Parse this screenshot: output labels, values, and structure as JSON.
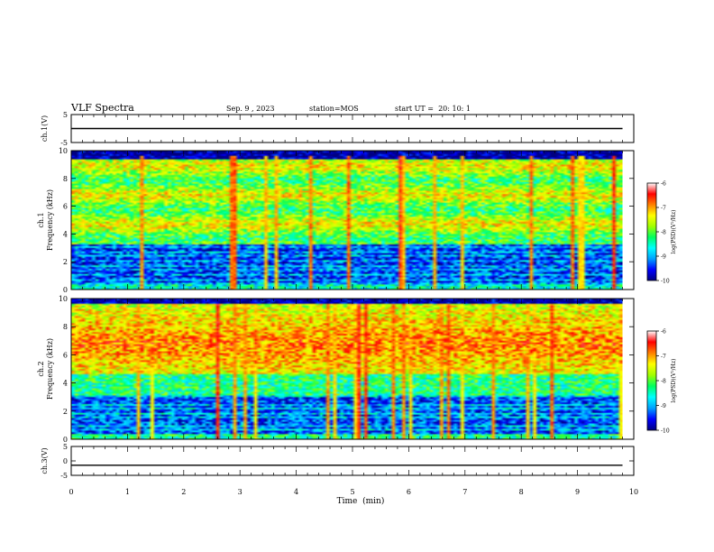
{
  "header": {
    "title": "VLF Spectra",
    "date": "Sep. 9 , 2023",
    "station": "station=MOS",
    "start": "start UT =  20: 10: 1"
  },
  "colors": {
    "colormap": [
      "#000080",
      "#0000ff",
      "#00a0ff",
      "#00ffff",
      "#00ff60",
      "#a0ff00",
      "#ffff00",
      "#ff8000",
      "#ff0000",
      "#ffffff"
    ],
    "line": "#000000"
  },
  "chart_data": [
    {
      "type": "line",
      "panel": "ch1-voltage",
      "ylabel": "ch.1(V)",
      "ylim": [
        -5,
        5
      ],
      "y_ticks": [
        "5",
        "-5"
      ],
      "series": [
        {
          "x": [
            0,
            9.8
          ],
          "y": [
            0,
            0
          ]
        }
      ]
    },
    {
      "type": "heatmap",
      "panel": "ch1-spectrogram",
      "ylabel": "ch.1\nFrequency (kHz)",
      "ylim": [
        0,
        10
      ],
      "y_ticks": [
        "0",
        "2",
        "4",
        "6",
        "8",
        "10"
      ],
      "x_range_min": [
        0,
        9.8
      ],
      "colorbar": {
        "label": "log(PSD)(V²/Hz)",
        "range": [
          -10,
          -6
        ],
        "ticks": [
          "-6",
          "-7",
          "-8",
          "-9",
          "-10"
        ]
      }
    },
    {
      "type": "heatmap",
      "panel": "ch2-spectrogram",
      "ylabel": "ch.2\nFrequency (kHz)",
      "ylim": [
        0,
        10
      ],
      "y_ticks": [
        "0",
        "2",
        "4",
        "6",
        "8",
        "10"
      ],
      "x_range_min": [
        0,
        9.8
      ],
      "colorbar": {
        "label": "log(PSD)(V²/Hz)",
        "range": [
          -10,
          -6
        ],
        "ticks": [
          "-6",
          "-7",
          "-8",
          "-9",
          "-10"
        ]
      }
    },
    {
      "type": "line",
      "panel": "ch3-voltage",
      "ylabel": "ch.3(V)",
      "ylim": [
        -5,
        5
      ],
      "y_ticks": [
        "5",
        "0",
        "-5"
      ],
      "series": [
        {
          "x": [
            0,
            9.8
          ],
          "y": [
            -1.5,
            -1.5
          ]
        }
      ]
    }
  ],
  "x_axis": {
    "label": "Time  (min)",
    "range": [
      0,
      10
    ],
    "ticks": [
      "0",
      "1",
      "2",
      "3",
      "4",
      "5",
      "6",
      "7",
      "8",
      "9",
      "10"
    ]
  }
}
